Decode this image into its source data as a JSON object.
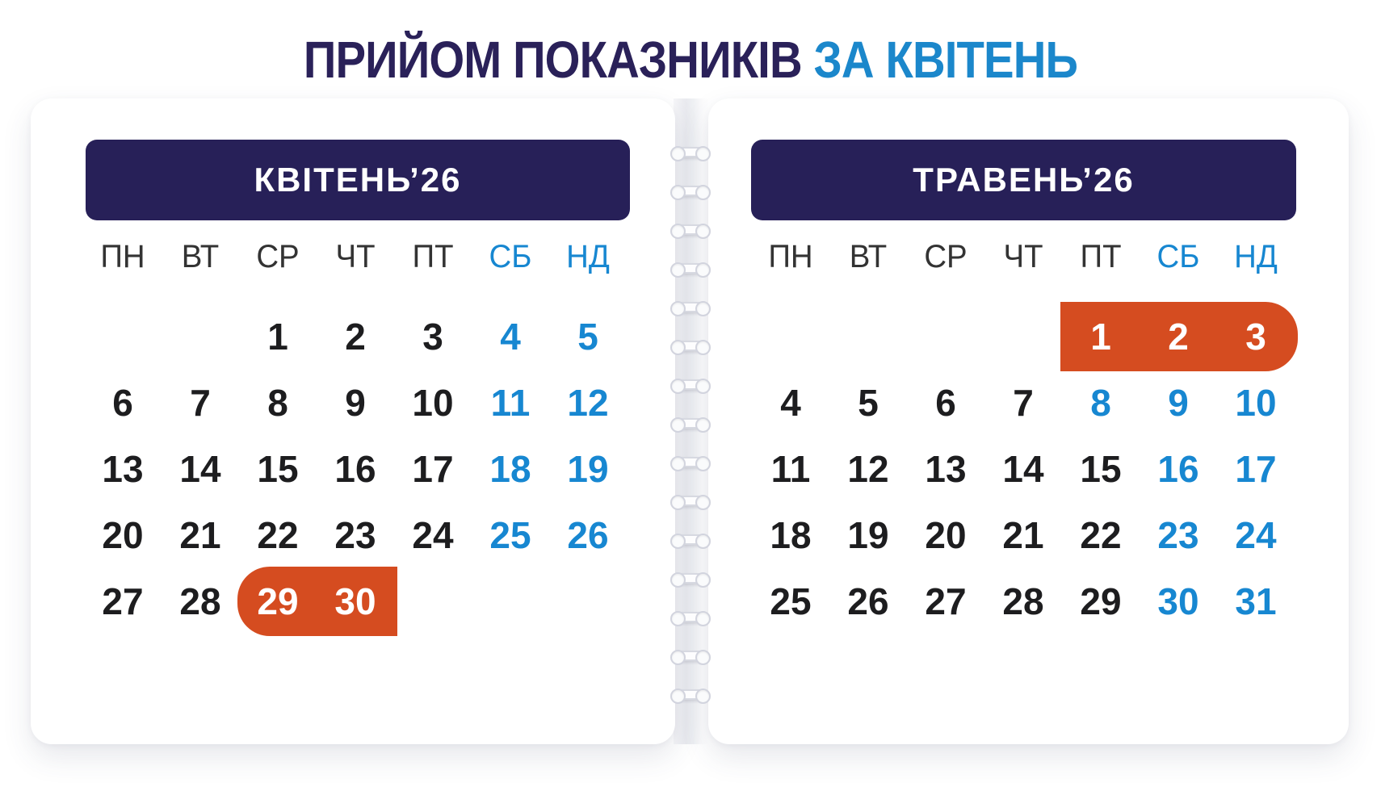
{
  "page_title": {
    "main": "ПРИЙОМ ПОКАЗНИКІВ",
    "accent": "ЗА КВІТЕНЬ"
  },
  "colors": {
    "navy": "#2a2159",
    "header_navy": "#272058",
    "blue": "#1b87cb",
    "weekend_blue": "#1787d1",
    "orange": "#d54c20",
    "day_text": "#1d1d1f",
    "weekday_text": "#333333",
    "page_bg": "#ffffff"
  },
  "calendars": [
    {
      "id": "april",
      "title": "КВІТЕНЬ’26",
      "weekdays": [
        "ПН",
        "ВТ",
        "СР",
        "ЧТ",
        "ПТ",
        "СБ",
        "НД"
      ],
      "weekend_columns": [
        5,
        6
      ],
      "weeks": [
        [
          null,
          null,
          1,
          2,
          3,
          4,
          5
        ],
        [
          6,
          7,
          8,
          9,
          10,
          11,
          12
        ],
        [
          13,
          14,
          15,
          16,
          17,
          18,
          19
        ],
        [
          20,
          21,
          22,
          23,
          24,
          25,
          26
        ],
        [
          27,
          28,
          29,
          30,
          null,
          null,
          null
        ]
      ],
      "blue_days": [
        4,
        5,
        11,
        12,
        18,
        19,
        25,
        26
      ],
      "highlight": {
        "days": [
          29,
          30
        ],
        "week": 4,
        "from_col": 2,
        "to_col": 3,
        "rounded_side": "left"
      }
    },
    {
      "id": "may",
      "title": "ТРАВЕНЬ’26",
      "weekdays": [
        "ПН",
        "ВТ",
        "СР",
        "ЧТ",
        "ПТ",
        "СБ",
        "НД"
      ],
      "weekend_columns": [
        5,
        6
      ],
      "weeks": [
        [
          null,
          null,
          null,
          null,
          1,
          2,
          3
        ],
        [
          4,
          5,
          6,
          7,
          8,
          9,
          10
        ],
        [
          11,
          12,
          13,
          14,
          15,
          16,
          17
        ],
        [
          18,
          19,
          20,
          21,
          22,
          23,
          24
        ],
        [
          25,
          26,
          27,
          28,
          29,
          30,
          31
        ]
      ],
      "blue_days": [
        8,
        9,
        10,
        16,
        17,
        23,
        24,
        30,
        31
      ],
      "highlight": {
        "days": [
          1,
          2,
          3
        ],
        "week": 0,
        "from_col": 4,
        "to_col": 6,
        "rounded_side": "right"
      }
    }
  ],
  "binding": {
    "ring_count": 15
  }
}
